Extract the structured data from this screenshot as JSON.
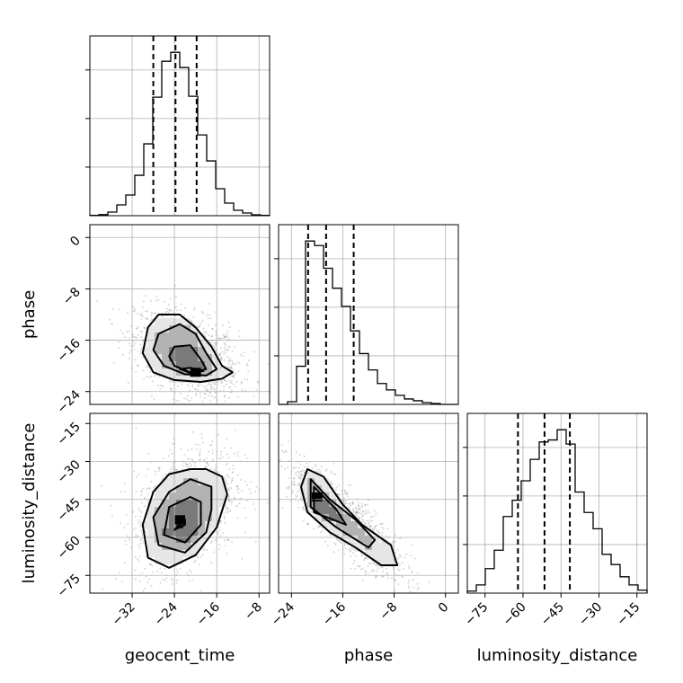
{
  "chart_data": {
    "type": "corner",
    "parameters": [
      "geocent_time",
      "phase",
      "luminosity_distance"
    ],
    "axes": {
      "geocent_time": {
        "range": [
          -40,
          -6
        ],
        "ticks": [
          -32,
          -24,
          -16,
          -8
        ]
      },
      "phase": {
        "range": [
          -26,
          2
        ],
        "ticks": [
          -24,
          -16,
          -8,
          0
        ]
      },
      "luminosity_distance": {
        "range": [
          -82,
          -11
        ],
        "ticks": [
          -75,
          -60,
          -45,
          -30,
          -15
        ]
      }
    },
    "marginals": [
      {
        "parameter": "geocent_time",
        "quantiles": [
          -28.0,
          -23.8,
          -19.8
        ],
        "bin_edges": [
          -40,
          -38.3,
          -36.6,
          -34.9,
          -33.2,
          -31.5,
          -29.8,
          -28.1,
          -26.4,
          -24.7,
          -23,
          -21.3,
          -19.6,
          -17.9,
          -16.2,
          -14.5,
          -12.8,
          -11.1,
          -9.4,
          -7.7,
          -6
        ],
        "counts": [
          0.4,
          1.2,
          4,
          12,
          23,
          45,
          80,
          132,
          172,
          182,
          165,
          133,
          90,
          61,
          30,
          14,
          6,
          3,
          1,
          0.3
        ]
      },
      {
        "parameter": "phase",
        "quantiles": [
          -21.4,
          -18.6,
          -14.3
        ],
        "bin_edges": [
          -26,
          -24.6,
          -23.2,
          -21.8,
          -20.4,
          -19,
          -17.6,
          -16.2,
          -14.8,
          -13.4,
          -12,
          -10.6,
          -9.2,
          -7.8,
          -6.4,
          -5,
          -3.6,
          -2.2,
          -0.8,
          0.6,
          2
        ],
        "counts": [
          0,
          3,
          42,
          180,
          175,
          150,
          128,
          108,
          81,
          56,
          38,
          23,
          16,
          10,
          6,
          4,
          2,
          1,
          0,
          0
        ]
      },
      {
        "parameter": "luminosity_distance",
        "quantiles": [
          -62.0,
          -51.5,
          -41.5
        ],
        "bin_edges": [
          -82,
          -78.45,
          -74.9,
          -71.35,
          -67.8,
          -64.25,
          -60.7,
          -57.15,
          -53.6,
          -50.05,
          -46.5,
          -42.95,
          -39.4,
          -35.85,
          -32.3,
          -28.75,
          -25.2,
          -21.65,
          -18.1,
          -14.55,
          -11
        ],
        "counts": [
          2,
          8,
          24,
          42,
          75,
          91,
          110,
          131,
          148,
          150,
          160,
          146,
          99,
          79,
          63,
          38,
          28,
          16,
          8,
          3
        ]
      }
    ],
    "joint": [
      {
        "x": "geocent_time",
        "y": "phase",
        "density_peak": {
          "x": -20,
          "y": -21
        },
        "contours": [
          [
            [
              -29,
              -14
            ],
            [
              -27,
              -12
            ],
            [
              -23,
              -12
            ],
            [
              -20,
              -14
            ],
            [
              -17,
              -17
            ],
            [
              -15,
              -20
            ],
            [
              -13,
              -21
            ],
            [
              -15,
              -22
            ],
            [
              -19,
              -22.5
            ],
            [
              -24,
              -22.2
            ],
            [
              -28,
              -21
            ],
            [
              -30,
              -18
            ]
          ],
          [
            [
              -27,
              -15
            ],
            [
              -23,
              -13.5
            ],
            [
              -20,
              -15
            ],
            [
              -18,
              -18
            ],
            [
              -16,
              -20.5
            ],
            [
              -18,
              -21.5
            ],
            [
              -22,
              -21.3
            ],
            [
              -26,
              -20
            ],
            [
              -28,
              -17.5
            ]
          ],
          [
            [
              -24,
              -17
            ],
            [
              -21,
              -16.8
            ],
            [
              -19,
              -19
            ],
            [
              -18,
              -20.5
            ],
            [
              -21,
              -21
            ],
            [
              -24,
              -20
            ],
            [
              -25,
              -18.5
            ]
          ],
          [
            [
              -23,
              -20.5
            ],
            [
              -21,
              -20.3
            ],
            [
              -18.5,
              -20.8
            ],
            [
              -21,
              -21.1
            ]
          ]
        ]
      },
      {
        "x": "geocent_time",
        "y": "luminosity_distance",
        "density_peak": {
          "x": -23,
          "y": -53
        },
        "contours": [
          [
            [
              -29,
              -68
            ],
            [
              -30,
              -55
            ],
            [
              -28,
              -42
            ],
            [
              -25,
              -35
            ],
            [
              -21,
              -33
            ],
            [
              -18,
              -33
            ],
            [
              -15,
              -36
            ],
            [
              -14,
              -43
            ],
            [
              -16,
              -56
            ],
            [
              -20,
              -67
            ],
            [
              -25,
              -72
            ]
          ],
          [
            [
              -27,
              -63
            ],
            [
              -28,
              -52
            ],
            [
              -25,
              -42
            ],
            [
              -21,
              -37
            ],
            [
              -17,
              -40
            ],
            [
              -17,
              -49
            ],
            [
              -18,
              -58
            ],
            [
              -22,
              -66
            ]
          ],
          [
            [
              -26,
              -59
            ],
            [
              -25,
              -48
            ],
            [
              -21,
              -44
            ],
            [
              -19,
              -46
            ],
            [
              -19,
              -55
            ],
            [
              -22,
              -62
            ]
          ],
          [
            [
              -24,
              -57
            ],
            [
              -22,
              -55
            ],
            [
              -22,
              -53
            ]
          ]
        ]
      },
      {
        "x": "phase",
        "y": "luminosity_distance",
        "density_peak": {
          "x": -20,
          "y": -44
        },
        "contours": [
          [
            [
              -21.5,
              -33
            ],
            [
              -22.5,
              -40
            ],
            [
              -21.5,
              -50
            ],
            [
              -18,
              -58
            ],
            [
              -14,
              -64
            ],
            [
              -10,
              -71
            ],
            [
              -7.5,
              -71
            ],
            [
              -8.5,
              -63
            ],
            [
              -13,
              -55
            ],
            [
              -16,
              -47
            ],
            [
              -19,
              -36
            ]
          ],
          [
            [
              -21,
              -37
            ],
            [
              -21,
              -48
            ],
            [
              -17,
              -56
            ],
            [
              -12,
              -64
            ],
            [
              -11,
              -61
            ],
            [
              -14,
              -53
            ],
            [
              -18,
              -45
            ]
          ],
          [
            [
              -20.5,
              -40
            ],
            [
              -20.5,
              -50
            ],
            [
              -15.5,
              -55
            ],
            [
              -17,
              -49
            ]
          ]
        ]
      }
    ]
  }
}
